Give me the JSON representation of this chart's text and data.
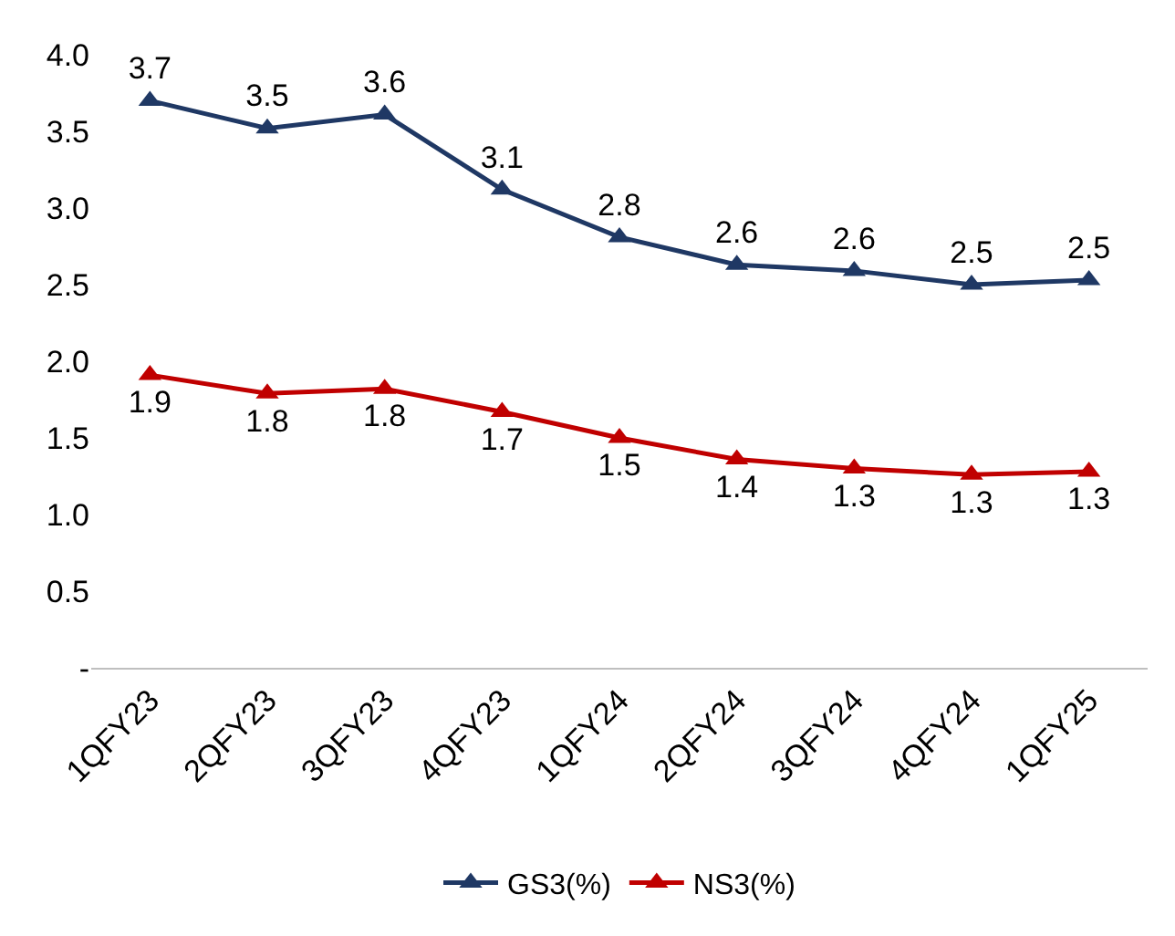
{
  "chart_data": {
    "type": "line",
    "categories": [
      "1QFY23",
      "2QFY23",
      "3QFY23",
      "4QFY23",
      "1QFY24",
      "2QFY24",
      "3QFY24",
      "4QFY24",
      "1QFY25"
    ],
    "series": [
      {
        "name": "GS3(%)",
        "color": "#1f3864",
        "values": [
          3.7,
          3.52,
          3.61,
          3.12,
          2.81,
          2.63,
          2.59,
          2.5,
          2.53
        ],
        "value_labels": [
          "3.7",
          "3.5",
          "3.6",
          "3.1",
          "2.8",
          "2.6",
          "2.6",
          "2.5",
          "2.5"
        ]
      },
      {
        "name": "NS3(%)",
        "color": "#c00000",
        "values": [
          1.91,
          1.79,
          1.82,
          1.67,
          1.5,
          1.36,
          1.3,
          1.26,
          1.28
        ],
        "value_labels": [
          "1.9",
          "1.8",
          "1.8",
          "1.7",
          "1.5",
          "1.4",
          "1.3",
          "1.3",
          "1.3"
        ]
      }
    ],
    "ylim": [
      0,
      4
    ],
    "yticks": [
      {
        "value": 0,
        "label": "-"
      },
      0.5,
      {
        "value": 1,
        "label": "1.0"
      },
      1.5,
      {
        "value": 2,
        "label": "2.0"
      },
      2.5,
      {
        "value": 3,
        "label": "3.0"
      },
      3.5,
      {
        "value": 4,
        "label": "4.0"
      }
    ],
    "grid": false,
    "legend": "bottom",
    "marker": "triangle",
    "line_style": "solid"
  }
}
